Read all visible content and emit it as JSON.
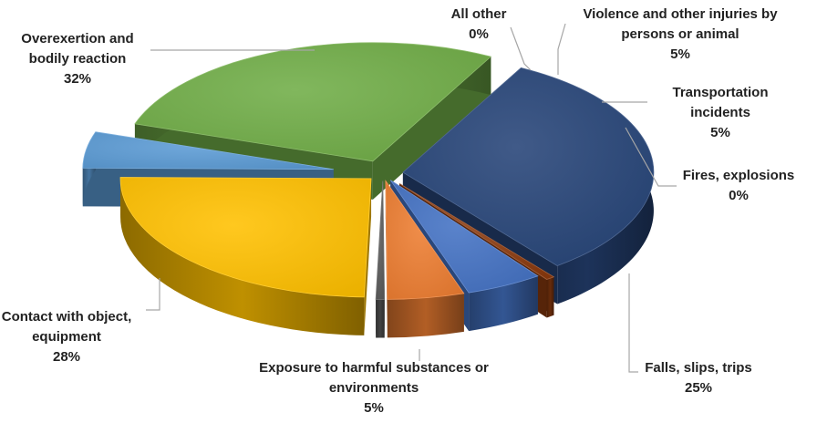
{
  "chart_data": {
    "type": "pie",
    "title": "",
    "style": "3d-exploded",
    "series": [
      {
        "values": [
          {
            "label": "All other",
            "value": 0,
            "display": "0%",
            "color": "#8B3A0E"
          },
          {
            "label": "Violence and other injuries by persons or animal",
            "value": 5,
            "display": "5%",
            "color": "#4472C4"
          },
          {
            "label": "Transportation incidents",
            "value": 5,
            "display": "5%",
            "color": "#ED7D31"
          },
          {
            "label": "Fires, explosions",
            "value": 0,
            "display": "0%",
            "color": "#595959"
          },
          {
            "label": "Falls, slips, trips",
            "value": 25,
            "display": "25%",
            "color": "#FFC000"
          },
          {
            "label": "Exposure to harmful substances or environments",
            "value": 5,
            "display": "5%",
            "color": "#5B9BD5"
          },
          {
            "label": "Contact with object, equipment",
            "value": 28,
            "display": "28%",
            "color": "#70AD47"
          },
          {
            "label": "Overexertion and bodily reaction",
            "value": 32,
            "display": "32%",
            "color": "#264478"
          }
        ]
      }
    ],
    "data_labels": [
      {
        "lines": [
          "All other",
          "0%"
        ]
      },
      {
        "lines": [
          "Violence and other injuries by",
          "persons or animal",
          "5%"
        ]
      },
      {
        "lines": [
          "Transportation",
          "incidents",
          "5%"
        ]
      },
      {
        "lines": [
          "Fires, explosions",
          "0%"
        ]
      },
      {
        "lines": [
          "Falls, slips, trips",
          "25%"
        ]
      },
      {
        "lines": [
          "Exposure to harmful substances or",
          "environments",
          "5%"
        ]
      },
      {
        "lines": [
          "Contact with object,",
          "equipment",
          "28%"
        ]
      },
      {
        "lines": [
          "Overexertion and",
          "bodily reaction",
          "32%"
        ]
      }
    ]
  }
}
